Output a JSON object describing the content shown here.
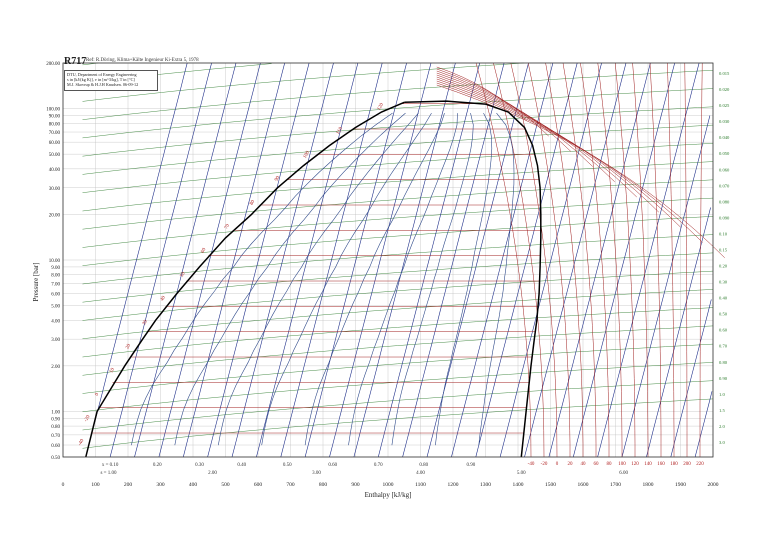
{
  "header": {
    "title": "R717",
    "subtitle": "Ref: R.Döring, Klima+Kälte Ingenieur Ki-Extra 5, 1978"
  },
  "info_box": {
    "lines": [
      "DTU, Department of Energy Engineering",
      "s in [kJ/(kg K)], v in [m^3/kg], T in [°C]",
      "M.J. Skovrup & H.J.H Knudsen. 06-09-12"
    ]
  },
  "colors": {
    "saturation": "#000000",
    "isotherm": "#a02020",
    "isentrope": "#1f2f8a",
    "isochore": "#2a7a2a",
    "grid": "#c0c0c0",
    "label_red": "#b02020",
    "label_green": "#2a7a2a",
    "label_blue": "#1f2f8a"
  },
  "chart_data": {
    "type": "line",
    "title": "R717",
    "xlabel": "Enthalpy [kJ/kg]",
    "ylabel": "Pressure [bar]",
    "xlim": [
      0,
      2000
    ],
    "ylim": [
      0.5,
      200
    ],
    "y_scale": "log",
    "x_ticks": [
      "0",
      "100",
      "200",
      "300",
      "400",
      "500",
      "600",
      "700",
      "800",
      "900",
      "1000",
      "1100",
      "1200",
      "1300",
      "1400",
      "1500",
      "1600",
      "1700",
      "1800",
      "1900",
      "2000"
    ],
    "y_ticks": [
      {
        "v": 0.5,
        "label": "0.50"
      },
      {
        "v": 0.6,
        "label": "0.60"
      },
      {
        "v": 0.7,
        "label": "0.70"
      },
      {
        "v": 0.8,
        "label": "0.80"
      },
      {
        "v": 0.9,
        "label": "0.90"
      },
      {
        "v": 1.0,
        "label": "1.00"
      },
      {
        "v": 2,
        "label": "2.00"
      },
      {
        "v": 3,
        "label": "3.00"
      },
      {
        "v": 4,
        "label": "4.00"
      },
      {
        "v": 5,
        "label": "5.00"
      },
      {
        "v": 6,
        "label": "6.00"
      },
      {
        "v": 7,
        "label": "7.00"
      },
      {
        "v": 8,
        "label": "8.00"
      },
      {
        "v": 9,
        "label": "9.00"
      },
      {
        "v": 10,
        "label": "10.00"
      },
      {
        "v": 20,
        "label": "20.00"
      },
      {
        "v": 30,
        "label": "30.00"
      },
      {
        "v": 40,
        "label": "40.00"
      },
      {
        "v": 50,
        "label": "50.00"
      },
      {
        "v": 60,
        "label": "60.00"
      },
      {
        "v": 70,
        "label": "70.00"
      },
      {
        "v": 80,
        "label": "80.00"
      },
      {
        "v": 90,
        "label": "90.00"
      },
      {
        "v": 100,
        "label": "100.00"
      },
      {
        "v": 200,
        "label": "200.00"
      }
    ],
    "saturated_liquid": [
      [
        70,
        0.5
      ],
      [
        105,
        1.0
      ],
      [
        190,
        2.0
      ],
      [
        245,
        3.0
      ],
      [
        285,
        4.0
      ],
      [
        350,
        6.0
      ],
      [
        420,
        9.0
      ],
      [
        500,
        14.0
      ],
      [
        580,
        20.0
      ],
      [
        660,
        30.0
      ],
      [
        740,
        42.0
      ],
      [
        820,
        57.0
      ],
      [
        900,
        75.0
      ],
      [
        980,
        95.0
      ],
      [
        1050,
        110.0
      ]
    ],
    "saturated_vapor": [
      [
        1410,
        0.5
      ],
      [
        1425,
        1.0
      ],
      [
        1440,
        2.0
      ],
      [
        1450,
        3.0
      ],
      [
        1458,
        4.0
      ],
      [
        1465,
        6.0
      ],
      [
        1468,
        9.0
      ],
      [
        1470,
        14.0
      ],
      [
        1470,
        20.0
      ],
      [
        1468,
        30.0
      ],
      [
        1460,
        42.0
      ],
      [
        1445,
        57.0
      ],
      [
        1420,
        75.0
      ],
      [
        1370,
        95.0
      ],
      [
        1300,
        107.0
      ],
      [
        1180,
        112.0
      ],
      [
        1050,
        110.0
      ]
    ],
    "quality_labels": [
      {
        "h": 145,
        "label": "x = 0.10"
      },
      {
        "h": 290,
        "label": "0.20"
      },
      {
        "h": 420,
        "label": "0.30"
      },
      {
        "h": 550,
        "label": "0.40"
      },
      {
        "h": 690,
        "label": "0.50"
      },
      {
        "h": 830,
        "label": "0.60"
      },
      {
        "h": 970,
        "label": "0.70"
      },
      {
        "h": 1110,
        "label": "0.80"
      },
      {
        "h": 1255,
        "label": "0.90"
      }
    ],
    "entropy_labels": [
      {
        "h": 140,
        "label": "s = 1.00"
      },
      {
        "h": 460,
        "label": "2.00"
      },
      {
        "h": 780,
        "label": "3.00"
      },
      {
        "h": 1100,
        "label": "4.00"
      },
      {
        "h": 1410,
        "label": "5.00"
      },
      {
        "h": 1725,
        "label": "6.00"
      }
    ],
    "isotherm_labels_left": [
      "-40",
      "-20",
      "0",
      "10",
      "20",
      "30",
      "40",
      "50",
      "60",
      "70",
      "80",
      "90",
      "100",
      "110",
      "120"
    ],
    "isotherm_labels_bottom": [
      "-40",
      "-20",
      "0",
      "20",
      "40",
      "60",
      "80",
      "100",
      "120",
      "140",
      "160",
      "180",
      "200",
      "220"
    ],
    "right_labels": [
      "0.015",
      "0.020",
      "0.025",
      "0.030",
      "0.040",
      "0.050",
      "0.060",
      "0.070",
      "0.080",
      "0.090",
      "0.10",
      "0.15",
      "0.20",
      "0.30",
      "0.40",
      "0.50",
      "0.60",
      "0.70",
      "0.80",
      "0.90",
      "1.0",
      "1.5",
      "2.0",
      "3.0"
    ]
  }
}
